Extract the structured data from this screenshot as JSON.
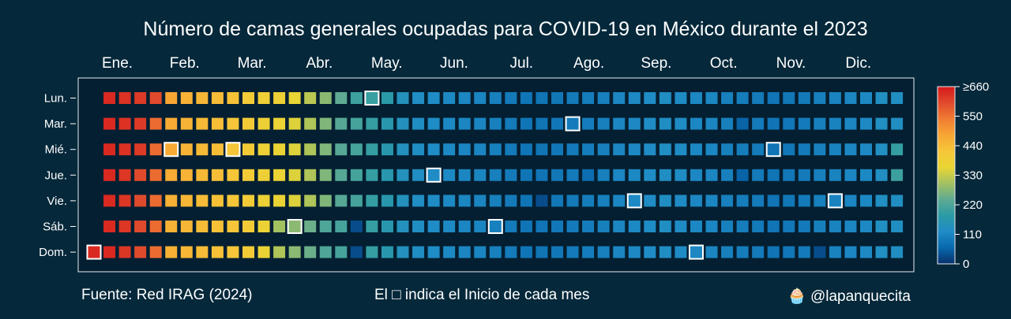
{
  "chart_data": {
    "type": "heatmap",
    "title": "Número de camas generales ocupadas para COVID-19 en México durante el 2023",
    "year": 2023,
    "month_labels": [
      "Ene.",
      "Feb.",
      "Mar.",
      "Abr.",
      "May.",
      "Jun.",
      "Jul.",
      "Ago.",
      "Sep.",
      "Oct.",
      "Nov.",
      "Dic."
    ],
    "day_labels": [
      "Lun.",
      "Mar.",
      "Mié.",
      "Jue.",
      "Vie.",
      "Sáb.",
      "Dom."
    ],
    "colorbar": {
      "ticks": [
        "0",
        "110",
        "220",
        "330",
        "440",
        "550",
        "≥660"
      ],
      "tick_values": [
        0,
        110,
        220,
        330,
        440,
        550,
        660
      ],
      "range": [
        0,
        660
      ],
      "colorscale": [
        "#08306b",
        "#0868ac",
        "#1f8cc6",
        "#2b9ba5",
        "#5faa92",
        "#a3c161",
        "#e9d534",
        "#f6c638",
        "#f7a634",
        "#f07c33",
        "#e04a2c",
        "#d7191c"
      ]
    },
    "weekly_values": {
      "Lun.": [
        null,
        640,
        630,
        620,
        600,
        480,
        460,
        450,
        440,
        430,
        400,
        390,
        380,
        360,
        320,
        280,
        240,
        200,
        195,
        175,
        140,
        125,
        120,
        115,
        110,
        108,
        100,
        90,
        82,
        80,
        85,
        90,
        95,
        100,
        110,
        115,
        120,
        125,
        118,
        112,
        110,
        100,
        95,
        90,
        80,
        85,
        90,
        100,
        105,
        110,
        115,
        130,
        128
      ],
      "Mar.": [
        null,
        640,
        630,
        620,
        560,
        470,
        455,
        445,
        435,
        420,
        400,
        380,
        370,
        350,
        310,
        270,
        230,
        210,
        190,
        165,
        140,
        125,
        120,
        115,
        110,
        108,
        100,
        90,
        82,
        80,
        85,
        90,
        95,
        100,
        110,
        115,
        120,
        125,
        118,
        112,
        110,
        100,
        55,
        90,
        80,
        85,
        90,
        100,
        105,
        110,
        115,
        130,
        128
      ],
      "Mié.": [
        null,
        640,
        630,
        620,
        560,
        470,
        455,
        445,
        435,
        420,
        400,
        380,
        370,
        350,
        310,
        270,
        230,
        210,
        190,
        165,
        140,
        125,
        120,
        115,
        110,
        108,
        100,
        90,
        82,
        80,
        85,
        90,
        95,
        100,
        110,
        115,
        120,
        125,
        118,
        112,
        110,
        100,
        95,
        90,
        80,
        85,
        90,
        100,
        105,
        110,
        115,
        130,
        190
      ],
      "Jue.": [
        null,
        640,
        625,
        600,
        560,
        470,
        455,
        445,
        435,
        420,
        400,
        380,
        370,
        350,
        310,
        270,
        230,
        210,
        190,
        165,
        140,
        125,
        120,
        115,
        110,
        108,
        100,
        90,
        82,
        80,
        85,
        90,
        70,
        100,
        110,
        115,
        120,
        125,
        118,
        112,
        110,
        100,
        55,
        90,
        80,
        85,
        90,
        100,
        105,
        110,
        115,
        130,
        200
      ],
      "Vie.": [
        null,
        640,
        625,
        600,
        560,
        460,
        450,
        440,
        430,
        420,
        400,
        380,
        370,
        350,
        310,
        270,
        230,
        210,
        190,
        165,
        140,
        125,
        120,
        115,
        110,
        108,
        100,
        90,
        82,
        30,
        85,
        90,
        95,
        100,
        110,
        115,
        120,
        125,
        118,
        112,
        110,
        100,
        95,
        90,
        80,
        85,
        90,
        100,
        105,
        110,
        115,
        130,
        128
      ],
      "Sáb.": [
        null,
        640,
        625,
        600,
        560,
        460,
        450,
        440,
        430,
        420,
        400,
        370,
        300,
        280,
        250,
        220,
        210,
        30,
        190,
        165,
        140,
        125,
        120,
        115,
        110,
        108,
        100,
        90,
        82,
        80,
        85,
        90,
        95,
        100,
        110,
        115,
        120,
        125,
        118,
        112,
        110,
        100,
        95,
        90,
        80,
        85,
        90,
        100,
        105,
        110,
        115,
        130,
        128
      ],
      "Dom.": [
        640,
        640,
        625,
        600,
        560,
        460,
        450,
        440,
        430,
        420,
        400,
        370,
        310,
        280,
        250,
        220,
        210,
        30,
        190,
        165,
        140,
        125,
        120,
        115,
        110,
        108,
        100,
        90,
        82,
        80,
        85,
        90,
        95,
        100,
        110,
        115,
        120,
        125,
        118,
        112,
        110,
        100,
        95,
        90,
        80,
        85,
        90,
        30,
        105,
        110,
        115,
        130,
        128
      ]
    },
    "month_start_markers": [
      {
        "day": "Dom.",
        "week": 0
      },
      {
        "day": "Mié.",
        "week": 5
      },
      {
        "day": "Mié.",
        "week": 9
      },
      {
        "day": "Sáb.",
        "week": 13
      },
      {
        "day": "Lun.",
        "week": 18
      },
      {
        "day": "Jue.",
        "week": 22
      },
      {
        "day": "Sáb.",
        "week": 26
      },
      {
        "day": "Mar.",
        "week": 31
      },
      {
        "day": "Vie.",
        "week": 35
      },
      {
        "day": "Dom.",
        "week": 39
      },
      {
        "day": "Mié.",
        "week": 44
      },
      {
        "day": "Vie.",
        "week": 48
      }
    ]
  },
  "footer": {
    "source": "Fuente: Red IRAG (2024)",
    "note": "El □ indica el Inicio de cada mes",
    "credit_icon": "cupcake-icon",
    "credit_glyph": "🧁",
    "credit": "@lapanquecita"
  }
}
